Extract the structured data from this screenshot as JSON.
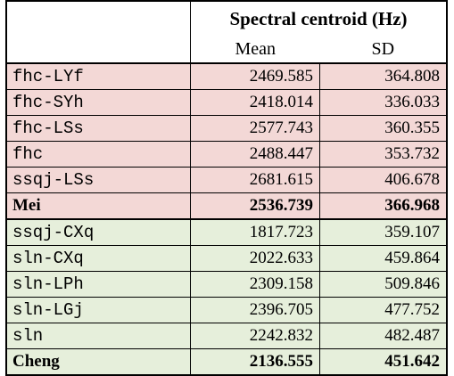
{
  "header": {
    "group_title": "Spectral centroid (Hz)",
    "col_mean": "Mean",
    "col_sd": "SD",
    "row_label": ""
  },
  "colors": {
    "pink_group": "#f3d8d6",
    "green_group": "#e6efdb"
  },
  "rows": [
    {
      "label": "fhc-LYf",
      "mean": "2469.585",
      "sd": "364.808",
      "group": "pink",
      "style": "mono"
    },
    {
      "label": "fhc-SYh",
      "mean": "2418.014",
      "sd": "336.033",
      "group": "pink",
      "style": "mono"
    },
    {
      "label": "fhc-LSs",
      "mean": "2577.743",
      "sd": "360.355",
      "group": "pink",
      "style": "mono"
    },
    {
      "label": "fhc",
      "mean": "2488.447",
      "sd": "353.732",
      "group": "pink",
      "style": "mono"
    },
    {
      "label": "ssqj-LSs",
      "mean": "2681.615",
      "sd": "406.678",
      "group": "pink",
      "style": "mono"
    },
    {
      "label": "Mei",
      "mean": "2536.739",
      "sd": "366.968",
      "group": "pink",
      "style": "bold"
    },
    {
      "label": "ssqj-CXq",
      "mean": "1817.723",
      "sd": "359.107",
      "group": "green",
      "style": "mono"
    },
    {
      "label": "sln-CXq",
      "mean": "2022.633",
      "sd": "459.864",
      "group": "green",
      "style": "mono"
    },
    {
      "label": "sln-LPh",
      "mean": "2309.158",
      "sd": "509.846",
      "group": "green",
      "style": "mono"
    },
    {
      "label": "sln-LGj",
      "mean": "2396.705",
      "sd": "477.752",
      "group": "green",
      "style": "mono"
    },
    {
      "label": "sln",
      "mean": "2242.832",
      "sd": "482.487",
      "group": "green",
      "style": "mono"
    },
    {
      "label": "Cheng",
      "mean": "2136.555",
      "sd": "451.642",
      "group": "green",
      "style": "bold"
    }
  ]
}
